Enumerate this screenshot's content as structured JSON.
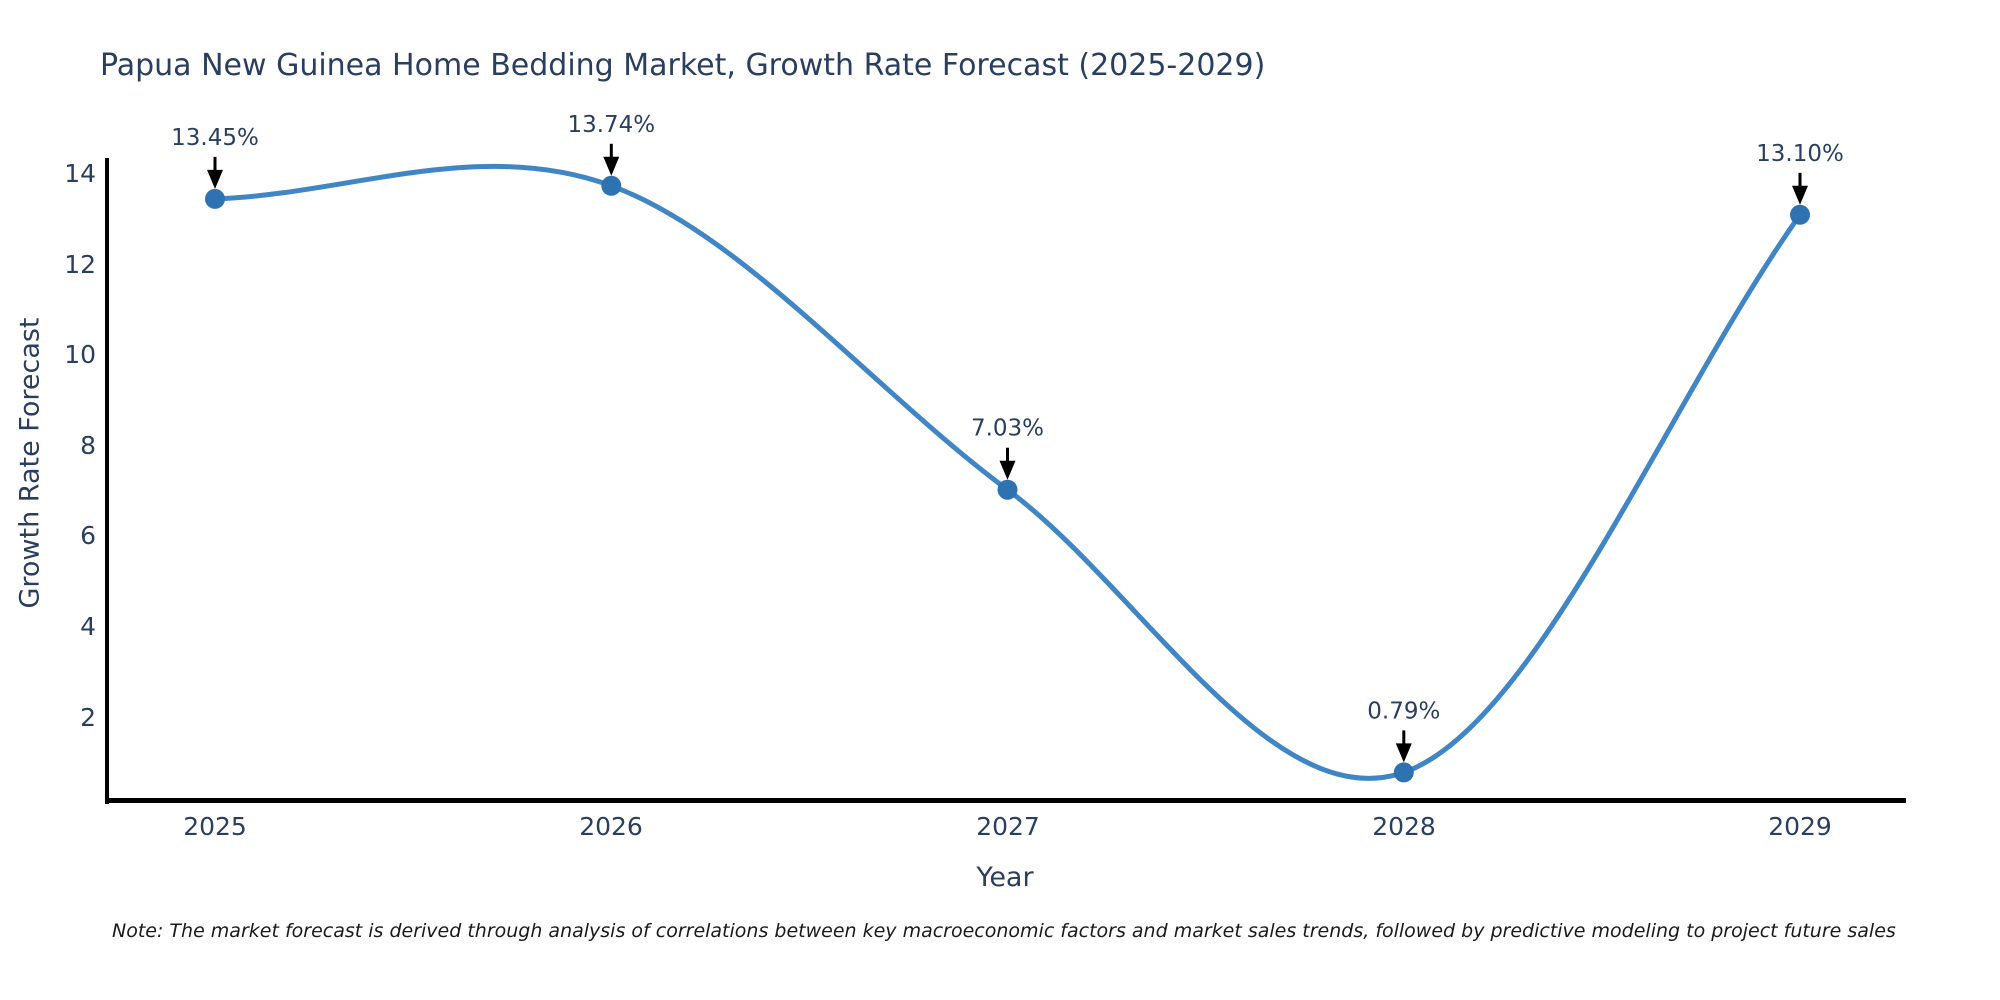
{
  "chart_data": {
    "type": "line",
    "title": "Papua New Guinea Home Bedding Market, Growth Rate Forecast (2025-2029)",
    "xlabel": "Year",
    "ylabel": "Growth Rate Forecast",
    "x": [
      "2025",
      "2026",
      "2027",
      "2028",
      "2029"
    ],
    "values": [
      13.45,
      13.74,
      7.03,
      0.79,
      13.1
    ],
    "point_labels": [
      "13.45%",
      "13.74%",
      "7.03%",
      "0.79%",
      "13.10%"
    ],
    "y_tick_labels": [
      "14",
      "12",
      "10",
      "8",
      "6",
      "4",
      "2"
    ],
    "y_tick_values": [
      14,
      12,
      10,
      8,
      6,
      4,
      2
    ],
    "ylim": [
      0.2,
      14.35
    ],
    "line_shape": "spline",
    "grid": false,
    "legend_position": "none",
    "colors": {
      "line": "#4186c4",
      "marker": "#2e72b1",
      "text": "#2a3f5f",
      "axis": "#000000"
    },
    "note": "Note: The market forecast is derived through analysis of correlations between key macroeconomic factors and market sales trends, followed by predictive modeling to project future sales"
  }
}
